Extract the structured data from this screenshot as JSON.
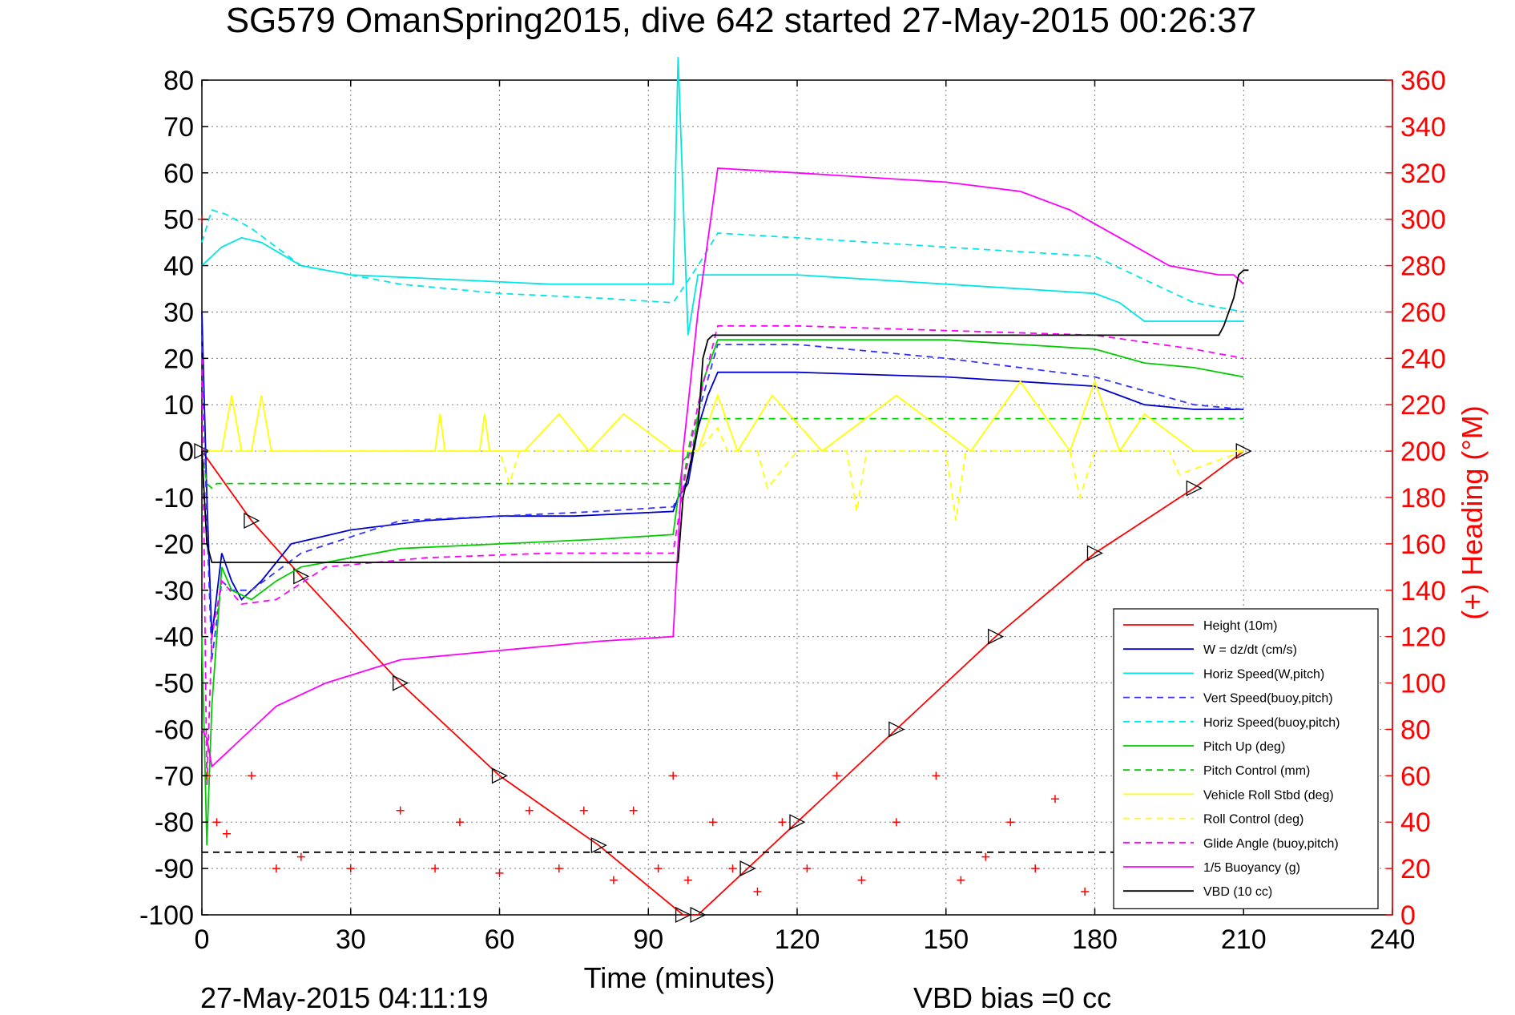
{
  "title": "SG579 OmanSpring2015, dive 642 started 27-May-2015 00:26:37",
  "footer": {
    "timestamp": "27-May-2015 04:11:19",
    "vbd_bias": "VBD bias =0 cc"
  },
  "colors": {
    "height": "#ff0000",
    "w": "#0000cc",
    "horiz_w": "#00e5e5",
    "vert_buoy": "#3333ff",
    "horiz_buoy": "#00e5e5",
    "pitch": "#00cc00",
    "pitch_ctrl": "#00cc00",
    "roll": "#ffff00",
    "roll_ctrl": "#ffff00",
    "glide": "#ff00ff",
    "buoyancy": "#ff00ff",
    "vbd": "#000000",
    "heading": "#ff0000"
  },
  "chart_data": {
    "type": "line",
    "title": "SG579 OmanSpring2015, dive 642 started 27-May-2015 00:26:37",
    "xlabel": "Time (minutes)",
    "ylabel_right": "(+) Heading (°M)",
    "xlim": [
      0,
      240
    ],
    "ylim": [
      -100,
      80
    ],
    "ylim_right": [
      0,
      360
    ],
    "x_ticks": [
      0,
      30,
      60,
      90,
      120,
      150,
      180,
      210,
      240
    ],
    "y_ticks": [
      -100,
      -90,
      -80,
      -70,
      -60,
      -50,
      -40,
      -30,
      -20,
      -10,
      0,
      10,
      20,
      30,
      40,
      50,
      60,
      70,
      80
    ],
    "y_ticks_right": [
      0,
      20,
      40,
      60,
      80,
      100,
      120,
      140,
      160,
      180,
      200,
      220,
      240,
      260,
      280,
      300,
      320,
      340,
      360
    ],
    "grid": true,
    "legend_position": "lower-right",
    "series": [
      {
        "key": "height",
        "name": "Height (10m)",
        "style": "solid",
        "marker": "triangle",
        "x": [
          0,
          10,
          20,
          40,
          60,
          80,
          97,
          100,
          110,
          120,
          140,
          160,
          180,
          200,
          210
        ],
        "y": [
          0,
          -15,
          -27,
          -50,
          -70,
          -85,
          -100,
          -100,
          -90,
          -80,
          -60,
          -40,
          -22,
          -8,
          0
        ]
      },
      {
        "key": "w",
        "name": "W = dz/dt (cm/s)",
        "style": "solid",
        "x": [
          0,
          1,
          2,
          4,
          6,
          8,
          12,
          18,
          30,
          45,
          60,
          75,
          95,
          96,
          98,
          100,
          102,
          104,
          120,
          150,
          180,
          190,
          200,
          210
        ],
        "y": [
          30,
          -10,
          -40,
          -22,
          -28,
          -32,
          -28,
          -20,
          -17,
          -15,
          -14,
          -14,
          -13,
          -10,
          -7,
          5,
          12,
          17,
          17,
          16,
          14,
          10,
          9,
          9
        ]
      },
      {
        "key": "horiz_w",
        "name": "Horiz Speed(W,pitch)",
        "style": "solid",
        "x": [
          0,
          2,
          4,
          8,
          12,
          20,
          30,
          50,
          70,
          95,
          96,
          97,
          98,
          100,
          104,
          120,
          150,
          180,
          185,
          190,
          200,
          210
        ],
        "y": [
          40,
          42,
          44,
          46,
          45,
          40,
          38,
          37,
          36,
          36,
          85,
          55,
          25,
          38,
          38,
          38,
          36,
          34,
          32,
          28,
          28,
          28
        ]
      },
      {
        "key": "vert_buoy",
        "name": "Vert Speed(buoy,pitch)",
        "style": "dashed",
        "x": [
          0,
          1,
          2,
          4,
          6,
          10,
          20,
          40,
          60,
          80,
          95,
          98,
          100,
          104,
          120,
          150,
          180,
          200,
          210
        ],
        "y": [
          25,
          -15,
          -45,
          -28,
          -30,
          -30,
          -22,
          -15,
          -14,
          -13,
          -12,
          -6,
          8,
          23,
          23,
          20,
          16,
          10,
          9
        ]
      },
      {
        "key": "horiz_buoy",
        "name": "Horiz Speed(buoy,pitch)",
        "style": "dashed",
        "x": [
          0,
          2,
          5,
          10,
          20,
          40,
          60,
          80,
          95,
          100,
          104,
          120,
          150,
          180,
          200,
          210
        ],
        "y": [
          45,
          52,
          51,
          48,
          40,
          36,
          34,
          33,
          32,
          40,
          47,
          46,
          44,
          42,
          32,
          30
        ]
      },
      {
        "key": "pitch",
        "name": "Pitch Up (deg)",
        "style": "solid",
        "x": [
          0,
          1,
          2,
          4,
          6,
          10,
          15,
          20,
          40,
          60,
          80,
          95,
          97,
          99,
          101,
          104,
          120,
          150,
          180,
          190,
          200,
          210
        ],
        "y": [
          -40,
          -85,
          -55,
          -25,
          -30,
          -32,
          -28,
          -25,
          -21,
          -20,
          -19,
          -18,
          -2,
          0,
          15,
          24,
          24,
          24,
          22,
          19,
          18,
          16
        ]
      },
      {
        "key": "pitch_ctrl",
        "name": "Pitch Control (mm)",
        "style": "dashed",
        "x": [
          0,
          1,
          2,
          3,
          96,
          97,
          98,
          99,
          100,
          101,
          102,
          103,
          104,
          210
        ],
        "y": [
          0,
          -7,
          -8,
          -7,
          -7,
          -7,
          0,
          5,
          7,
          7,
          7,
          7,
          7,
          7
        ]
      },
      {
        "key": "roll",
        "name": "Vehicle Roll Stbd (deg)",
        "style": "solid",
        "x": [
          0,
          4,
          6,
          8,
          10,
          12,
          14,
          20,
          47,
          48,
          49,
          56,
          57,
          58,
          65,
          72,
          78,
          85,
          95,
          100,
          104,
          108,
          115,
          125,
          140,
          155,
          165,
          175,
          180,
          185,
          190,
          200,
          210
        ],
        "y": [
          0,
          0,
          12,
          0,
          0,
          12,
          0,
          0,
          0,
          8,
          0,
          0,
          8,
          0,
          0,
          8,
          0,
          8,
          0,
          0,
          12,
          0,
          12,
          0,
          12,
          0,
          15,
          0,
          15,
          0,
          8,
          0,
          0
        ]
      },
      {
        "key": "roll_ctrl",
        "name": "Roll Control (deg)",
        "style": "dashed",
        "x": [
          0,
          30,
          60,
          62,
          64,
          90,
          100,
          104,
          106,
          112,
          114,
          120,
          130,
          132,
          134,
          150,
          152,
          154,
          175,
          177,
          180,
          195,
          197,
          210
        ],
        "y": [
          0,
          0,
          0,
          -7,
          0,
          0,
          0,
          5,
          0,
          0,
          -8,
          0,
          0,
          -13,
          0,
          0,
          -15,
          0,
          0,
          -10,
          0,
          0,
          -5,
          0
        ]
      },
      {
        "key": "glide",
        "name": "Glide Angle (buoy,pitch)",
        "style": "dashed",
        "x": [
          0,
          1,
          2,
          4,
          8,
          15,
          25,
          45,
          70,
          95,
          97,
          100,
          104,
          120,
          150,
          180,
          200,
          210
        ],
        "y": [
          20,
          -72,
          -40,
          -28,
          -33,
          -32,
          -25,
          -23,
          -22,
          -22,
          -8,
          10,
          27,
          27,
          26,
          25,
          22,
          20
        ]
      },
      {
        "key": "buoyancy",
        "name": "1/5 Buoyancy (g)",
        "style": "solid",
        "x": [
          0,
          1,
          2,
          4,
          8,
          15,
          25,
          40,
          60,
          80,
          95,
          97,
          100,
          104,
          120,
          150,
          165,
          175,
          185,
          195,
          205,
          208,
          210
        ],
        "y": [
          -60,
          -62,
          -68,
          -66,
          -62,
          -55,
          -50,
          -45,
          -43,
          -41,
          -40,
          0,
          30,
          61,
          60,
          58,
          56,
          52,
          46,
          40,
          38,
          38,
          36
        ]
      },
      {
        "key": "vbd",
        "name": "VBD (10 cc)",
        "style": "solid",
        "x": [
          0,
          1,
          2,
          3,
          96,
          97,
          100,
          101,
          102,
          103,
          104,
          205,
          206,
          208,
          209,
          210,
          211
        ],
        "y": [
          0,
          -20,
          -24,
          -24,
          -24,
          -10,
          5,
          20,
          24,
          25,
          25,
          25,
          27,
          33,
          38,
          39,
          39
        ]
      },
      {
        "key": "heading",
        "name": "(+) Heading (°M)",
        "style": "markers",
        "axis": "right",
        "x": [
          0,
          1,
          3,
          5,
          10,
          15,
          20,
          30,
          40,
          47,
          52,
          60,
          66,
          72,
          77,
          83,
          87,
          92,
          95,
          98,
          103,
          107,
          112,
          117,
          122,
          128,
          133,
          140,
          148,
          153,
          158,
          163,
          168,
          172,
          178,
          185,
          190,
          200,
          207,
          210
        ],
        "y": [
          300,
          60,
          40,
          35,
          60,
          20,
          25,
          20,
          45,
          20,
          40,
          18,
          45,
          20,
          45,
          15,
          45,
          20,
          60,
          15,
          40,
          20,
          10,
          40,
          20,
          60,
          15,
          40,
          60,
          15,
          25,
          40,
          20,
          50,
          10,
          35,
          15,
          35,
          20,
          40
        ]
      },
      {
        "key": "heading_target",
        "name": "",
        "style": "dashed",
        "axis": "right",
        "x": [
          0,
          210
        ],
        "y": [
          27,
          27
        ]
      }
    ]
  }
}
